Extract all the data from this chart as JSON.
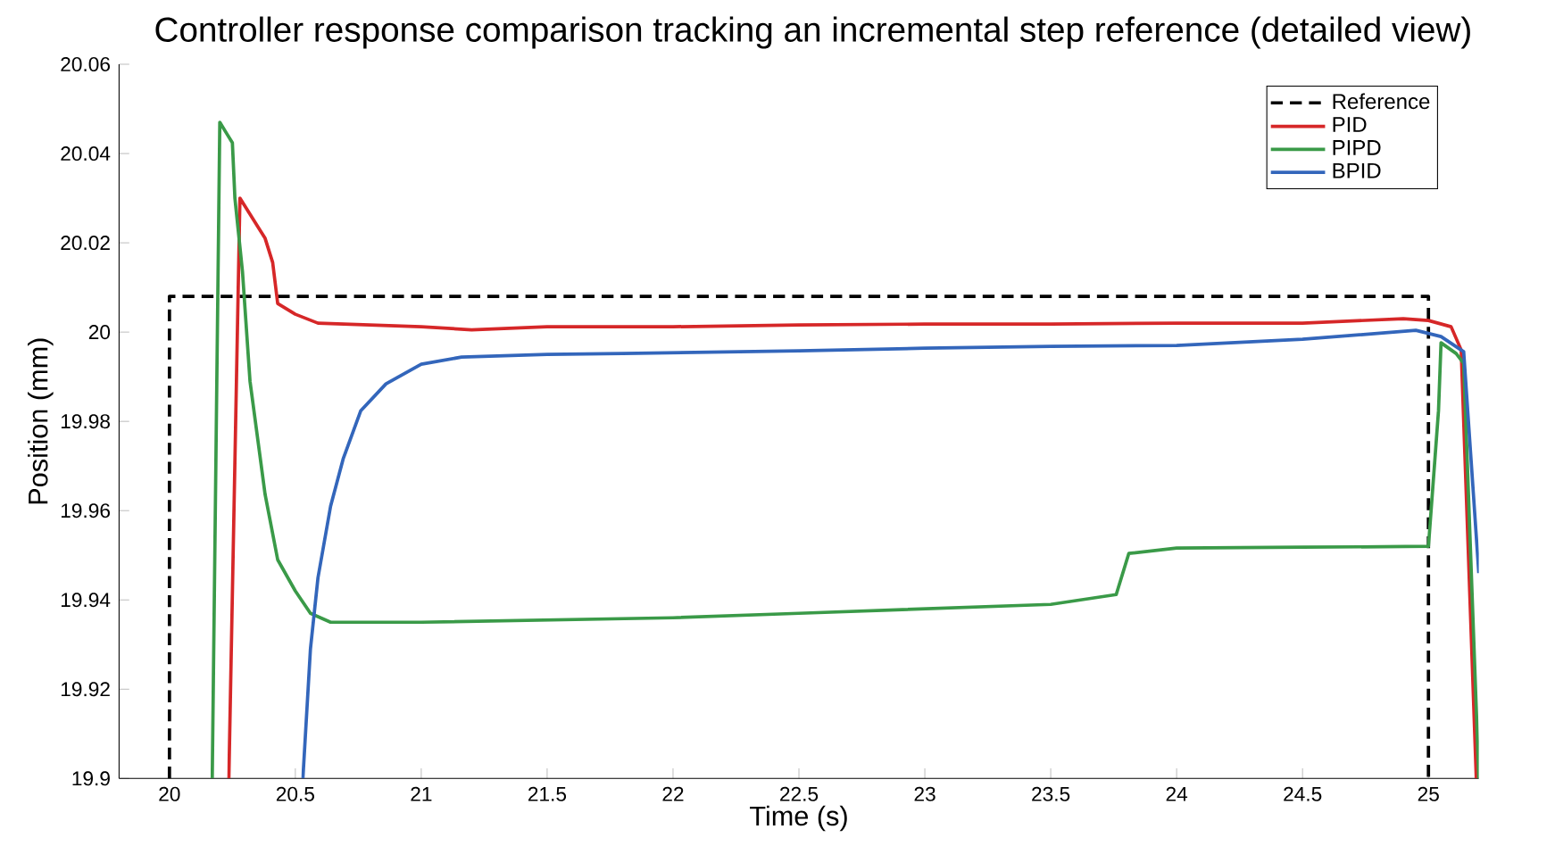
{
  "chart_data": {
    "type": "line",
    "title": "Controller response comparison tracking an incremental step reference (detailed view)",
    "xlabel": "Time (s)",
    "ylabel": "Position (mm)",
    "xlim": [
      19.8,
      25.2
    ],
    "ylim": [
      19.9,
      20.06
    ],
    "xticks": [
      20,
      20.5,
      21,
      21.5,
      22,
      22.5,
      23,
      23.5,
      24,
      24.5,
      25
    ],
    "yticks": [
      19.9,
      19.92,
      19.94,
      19.96,
      19.98,
      20,
      20.02,
      20.04,
      20.06
    ],
    "grid": false,
    "legend": "top right",
    "marker": "none",
    "series": [
      {
        "name": "Reference",
        "color": "#000000",
        "line_style": "dashed",
        "x": [
          20,
          20,
          25,
          25
        ],
        "values": [
          19.9,
          20.008,
          20.008,
          19.9
        ]
      },
      {
        "name": "PID",
        "color": "#d62728",
        "line_style": "solid",
        "x": [
          20.236,
          20.28,
          20.38,
          20.41,
          20.43,
          20.5,
          20.59,
          21,
          21.2,
          21.5,
          22,
          22.5,
          23,
          23.5,
          24,
          24.5,
          24.9,
          25.0,
          25.09,
          25.13,
          25.19
        ],
        "values": [
          19.9,
          20.03,
          20.021,
          20.0156,
          20.0064,
          20.004,
          20.002,
          20.0012,
          20.0005,
          20.0012,
          20.0012,
          20.0016,
          20.0018,
          20.0018,
          20.002,
          20.002,
          20.003,
          20.0026,
          20.0012,
          19.996,
          19.9
        ]
      },
      {
        "name": "PIPD",
        "color": "#3a9a48",
        "line_style": "solid",
        "x": [
          20.17,
          20.2,
          20.25,
          20.26,
          20.29,
          20.32,
          20.38,
          20.43,
          20.5,
          20.56,
          20.64,
          21,
          21.5,
          22,
          22.5,
          23,
          23.5,
          23.76,
          23.81,
          24,
          24.5,
          25.0,
          25.04,
          25.05,
          25.11,
          25.14,
          25.2
        ],
        "values": [
          19.9,
          20.047,
          20.0424,
          20.03,
          20.0136,
          19.989,
          19.9636,
          19.949,
          19.942,
          19.937,
          19.935,
          19.935,
          19.9355,
          19.936,
          19.937,
          19.938,
          19.939,
          19.9412,
          19.9504,
          19.9516,
          19.9518,
          19.952,
          19.9824,
          19.9976,
          19.9952,
          19.993,
          19.9
        ]
      },
      {
        "name": "BPID",
        "color": "#3366bb",
        "line_style": "solid",
        "x": [
          20.53,
          20.56,
          20.59,
          20.64,
          20.69,
          20.76,
          20.86,
          21.0,
          21.16,
          21.5,
          21.8,
          22.5,
          23,
          23.5,
          24,
          24.5,
          24.95,
          25.05,
          25.14,
          25.2
        ],
        "values": [
          19.9,
          19.929,
          19.945,
          19.961,
          19.9716,
          19.9824,
          19.9884,
          19.9928,
          19.9944,
          19.995,
          19.9952,
          19.9958,
          19.9964,
          19.9968,
          19.997,
          19.9984,
          20.0004,
          19.999,
          19.9956,
          19.946
        ]
      }
    ]
  }
}
